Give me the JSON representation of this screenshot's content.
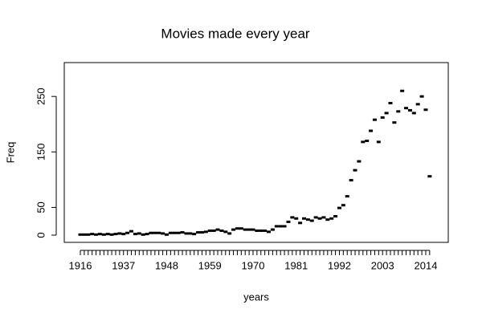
{
  "chart_data": {
    "type": "scatter",
    "title": "Movies made every year",
    "x_label": "years",
    "y_label": "Freq",
    "categories": [
      "1916",
      null,
      null,
      null,
      null,
      null,
      null,
      null,
      null,
      null,
      null,
      "1937",
      null,
      null,
      null,
      null,
      null,
      null,
      null,
      null,
      null,
      null,
      "1948",
      null,
      null,
      null,
      null,
      null,
      null,
      null,
      null,
      null,
      null,
      "1959",
      null,
      null,
      null,
      null,
      null,
      null,
      null,
      null,
      null,
      null,
      "1970",
      null,
      null,
      null,
      null,
      null,
      null,
      null,
      null,
      null,
      null,
      "1981",
      null,
      null,
      null,
      null,
      null,
      null,
      null,
      null,
      null,
      null,
      "1992",
      null,
      null,
      null,
      null,
      null,
      null,
      null,
      null,
      null,
      null,
      "2003",
      null,
      null,
      null,
      null,
      null,
      null,
      null,
      null,
      null,
      null,
      "2014",
      null
    ],
    "values": [
      1,
      1,
      1,
      2,
      1,
      2,
      1,
      2,
      1,
      2,
      3,
      2,
      4,
      7,
      2,
      3,
      1,
      2,
      4,
      4,
      4,
      3,
      1,
      4,
      4,
      4,
      5,
      3,
      3,
      2,
      5,
      5,
      6,
      8,
      8,
      10,
      8,
      6,
      3,
      10,
      12,
      12,
      10,
      10,
      10,
      8,
      8,
      8,
      6,
      10,
      16,
      16,
      16,
      24,
      32,
      30,
      22,
      30,
      28,
      26,
      32,
      30,
      32,
      28,
      30,
      34,
      49,
      54,
      70,
      99,
      117,
      133,
      168,
      170,
      188,
      208,
      168,
      212,
      220,
      238,
      203,
      223,
      260,
      229,
      225,
      220,
      236,
      250,
      226,
      106
    ],
    "color": "#000000",
    "ylim": [
      -13,
      311
    ],
    "yticks": [
      0,
      50,
      150,
      250
    ]
  }
}
